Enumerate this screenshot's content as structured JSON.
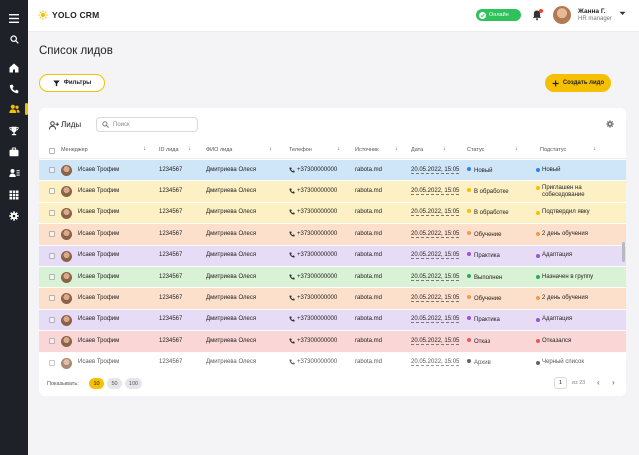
{
  "app": {
    "name": "YOLO CRM"
  },
  "header": {
    "status": "Онлайн",
    "user_name": "Жанна Г.",
    "user_role": "HR manager"
  },
  "page": {
    "title": "Список лидов",
    "filters_label": "Фильтры",
    "create_label": "Создать лидо"
  },
  "card": {
    "title": "Лиды",
    "search_placeholder": "Поиск"
  },
  "columns": [
    "Менеджер",
    "ID лида",
    "ФИО лида",
    "Телефон",
    "Источник",
    "Дата",
    "Статус",
    "Подстатус"
  ],
  "rows": [
    {
      "manager": "Исаев Трофим",
      "id": "1234567",
      "name": "Дмитриева Олеся",
      "phone": "+37300000000",
      "source": "rabota.md",
      "date": "20.05.2022, 15:05",
      "status": "Новый",
      "substatus": "Новый",
      "bg": "#cfe5f8",
      "dot": "#2f80ed"
    },
    {
      "manager": "Исаев Трофим",
      "id": "1234567",
      "name": "Дмитриева Олеся",
      "phone": "+37300000000",
      "source": "rabota.md",
      "date": "20.05.2022, 15:05",
      "status": "В обработке",
      "substatus": "Приглашен на собеседование",
      "bg": "#fdf0c4",
      "dot": "#f6c000"
    },
    {
      "manager": "Исаев Трофим",
      "id": "1234567",
      "name": "Дмитриева Олеся",
      "phone": "+37300000000",
      "source": "rabota.md",
      "date": "20.05.2022, 15:05",
      "status": "В обработке",
      "substatus": "Подтвердил явку",
      "bg": "#fdf0c4",
      "dot": "#f6c000"
    },
    {
      "manager": "Исаев Трофим",
      "id": "1234567",
      "name": "Дмитриева Олеся",
      "phone": "+37300000000",
      "source": "rabota.md",
      "date": "20.05.2022, 15:05",
      "status": "Обучение",
      "substatus": "2 день обучения",
      "bg": "#fde0cc",
      "dot": "#f2994a"
    },
    {
      "manager": "Исаев Трофим",
      "id": "1234567",
      "name": "Дмитриева Олеся",
      "phone": "+37300000000",
      "source": "rabota.md",
      "date": "20.05.2022, 15:05",
      "status": "Практика",
      "substatus": "Адаптация",
      "bg": "#e6dcf6",
      "dot": "#9b51e0"
    },
    {
      "manager": "Исаев Трофим",
      "id": "1234567",
      "name": "Дмитриева Олеся",
      "phone": "+37300000000",
      "source": "rabota.md",
      "date": "20.05.2022, 15:05",
      "status": "Выполнен",
      "substatus": "Назначен в группу",
      "bg": "#d9f1d4",
      "dot": "#27ae60"
    },
    {
      "manager": "Исаев Трофим",
      "id": "1234567",
      "name": "Дмитриева Олеся",
      "phone": "+37300000000",
      "source": "rabota.md",
      "date": "20.05.2022, 15:05",
      "status": "Обучение",
      "substatus": "2 день обучения",
      "bg": "#fde0cc",
      "dot": "#f2994a"
    },
    {
      "manager": "Исаев Трофим",
      "id": "1234567",
      "name": "Дмитриева Олеся",
      "phone": "+37300000000",
      "source": "rabota.md",
      "date": "20.05.2022, 15:05",
      "status": "Практика",
      "substatus": "Адаптация",
      "bg": "#e6dcf6",
      "dot": "#9b51e0"
    },
    {
      "manager": "Исаев Трофим",
      "id": "1234567",
      "name": "Дмитриева Олеся",
      "phone": "+37300000000",
      "source": "rabota.md",
      "date": "20.05.2022, 15:05",
      "status": "Отказ",
      "substatus": "Отказался",
      "bg": "#fbd6d6",
      "dot": "#eb5757"
    },
    {
      "manager": "Исаев Трофим",
      "id": "1234567",
      "name": "Дмитриева Олеся",
      "phone": "+37300000000",
      "source": "rabota.md",
      "date": "20.05.2022, 15:05",
      "status": "Архив",
      "substatus": "Черный список",
      "bg": "#ffffff",
      "dot": "#333333",
      "muted": true
    }
  ],
  "pagination": {
    "show_label": "Показывать:",
    "sizes": [
      "10",
      "50",
      "100"
    ],
    "current_page": "1",
    "of_label": "из 23"
  }
}
